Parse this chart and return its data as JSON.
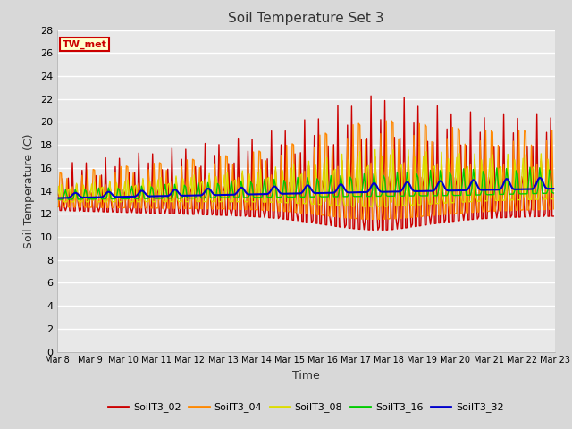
{
  "title": "Soil Temperature Set 3",
  "xlabel": "Time",
  "ylabel": "Soil Temperature (C)",
  "ylim": [
    0,
    28
  ],
  "yticks": [
    0,
    2,
    4,
    6,
    8,
    10,
    12,
    14,
    16,
    18,
    20,
    22,
    24,
    26,
    28
  ],
  "fig_bg": "#d8d8d8",
  "plot_bg": "#e8e8e8",
  "grid_color": "#ffffff",
  "annotation_text": "TW_met",
  "annotation_bg": "#ffffcc",
  "annotation_border": "#cc0000",
  "series_colors": {
    "SoilT3_02": "#cc0000",
    "SoilT3_04": "#ff8800",
    "SoilT3_08": "#dddd00",
    "SoilT3_16": "#00cc00",
    "SoilT3_32": "#0000cc"
  },
  "series_lw": {
    "SoilT3_02": 1.0,
    "SoilT3_04": 1.0,
    "SoilT3_08": 1.0,
    "SoilT3_16": 1.0,
    "SoilT3_32": 1.5
  }
}
